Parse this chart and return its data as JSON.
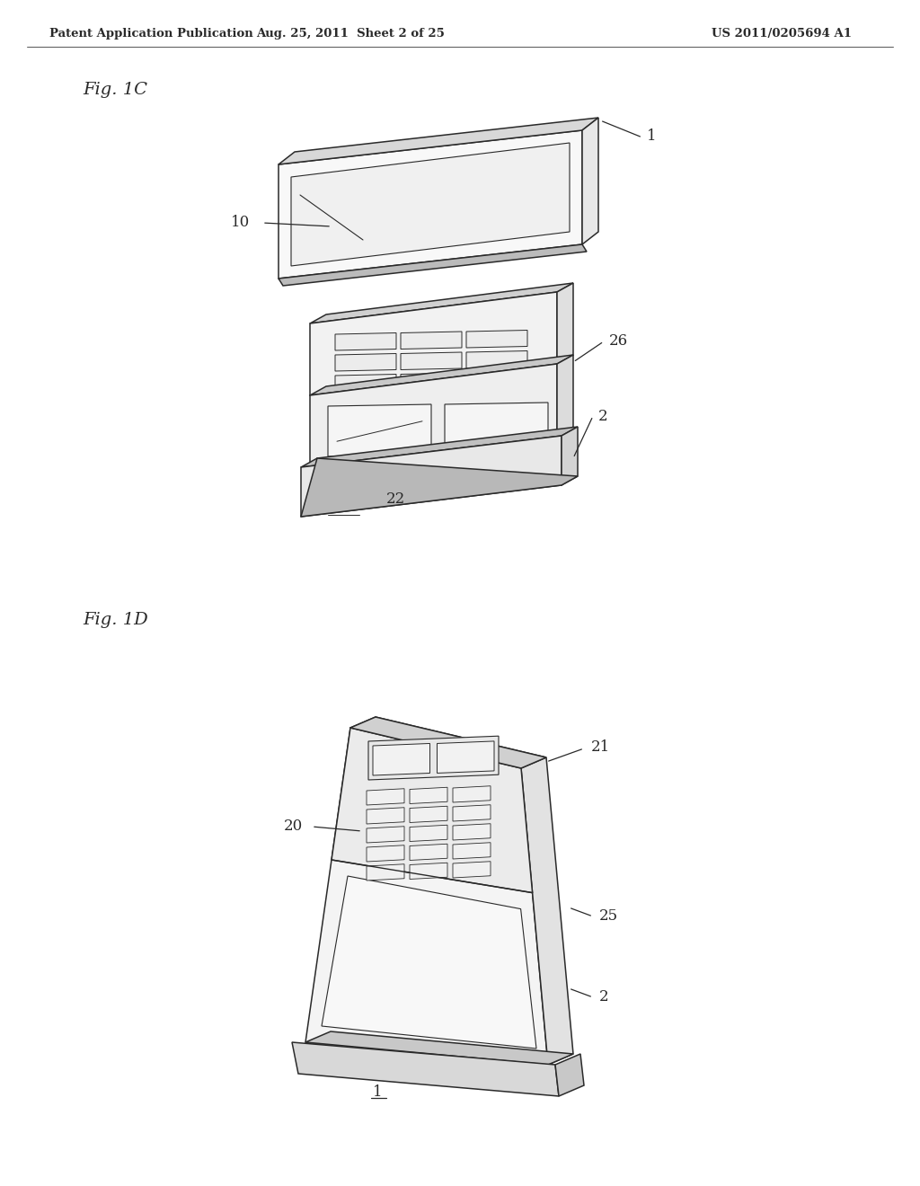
{
  "bg_color": "#ffffff",
  "header_left": "Patent Application Publication",
  "header_mid": "Aug. 25, 2011  Sheet 2 of 25",
  "header_right": "US 2011/0205694 A1",
  "fig1c_label": "Fig. 1C",
  "fig1d_label": "Fig. 1D",
  "line_color": "#2a2a2a",
  "line_width": 1.1,
  "label_fontsize": 11,
  "header_fontsize": 9.5,
  "fig_label_fontsize": 14
}
